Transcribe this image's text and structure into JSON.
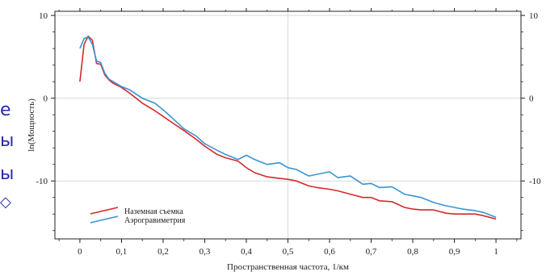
{
  "edge_glyphs": [
    "е",
    "ы",
    "ы",
    "◇"
  ],
  "colors": {
    "ground": "#d42a2a",
    "aero": "#3a93d6",
    "axis": "#222222",
    "grid": "#d9d9d9",
    "side": "#2a2aa8"
  },
  "chart_data": {
    "type": "line",
    "xlabel": "Пространственная частота, 1/км",
    "ylabel": "ln(Мощность)",
    "xlim": [
      -0.06,
      1.06
    ],
    "ylim": [
      -17,
      10.5
    ],
    "xticks": [
      0,
      0.1,
      0.2,
      0.3,
      0.4,
      0.5,
      0.6,
      0.7,
      0.8,
      0.9,
      1
    ],
    "xtick_labels": [
      "0",
      "0,1",
      "0,2",
      "0,3",
      "0,4",
      "0,5",
      "0,6",
      "0,7",
      "0,8",
      "0,9",
      "1"
    ],
    "yticks": [
      -10,
      0,
      10
    ],
    "ytick_labels": [
      "-10",
      "0",
      "10"
    ],
    "grid": true,
    "legend_position": "bottom-left",
    "series": [
      {
        "name": "Наземная съемка",
        "color": "#d42a2a",
        "x": [
          0,
          0.01,
          0.02,
          0.03,
          0.04,
          0.05,
          0.06,
          0.07,
          0.08,
          0.1,
          0.12,
          0.15,
          0.18,
          0.2,
          0.22,
          0.25,
          0.28,
          0.3,
          0.33,
          0.35,
          0.38,
          0.4,
          0.42,
          0.45,
          0.48,
          0.5,
          0.52,
          0.55,
          0.57,
          0.6,
          0.62,
          0.65,
          0.68,
          0.7,
          0.72,
          0.75,
          0.78,
          0.8,
          0.82,
          0.85,
          0.88,
          0.9,
          0.92,
          0.95,
          0.97,
          1.0
        ],
        "y": [
          2,
          6.5,
          7.5,
          7.0,
          4.2,
          4.1,
          2.8,
          2.2,
          1.8,
          1.3,
          0.6,
          -0.6,
          -1.5,
          -2.2,
          -2.9,
          -3.9,
          -5.0,
          -5.8,
          -6.8,
          -7.2,
          -7.6,
          -8.4,
          -9.0,
          -9.5,
          -9.7,
          -9.8,
          -10.0,
          -10.6,
          -10.8,
          -11.0,
          -11.2,
          -11.6,
          -12.0,
          -12.0,
          -12.4,
          -12.5,
          -13.2,
          -13.4,
          -13.5,
          -13.5,
          -13.9,
          -14.0,
          -14.0,
          -14.0,
          -14.2,
          -14.6
        ]
      },
      {
        "name": "Аэрогравиметрия",
        "color": "#3a93d6",
        "x": [
          0,
          0.01,
          0.02,
          0.03,
          0.04,
          0.05,
          0.06,
          0.07,
          0.08,
          0.1,
          0.12,
          0.15,
          0.18,
          0.2,
          0.22,
          0.25,
          0.28,
          0.3,
          0.33,
          0.35,
          0.38,
          0.4,
          0.42,
          0.45,
          0.48,
          0.5,
          0.52,
          0.55,
          0.57,
          0.6,
          0.62,
          0.65,
          0.68,
          0.7,
          0.72,
          0.75,
          0.78,
          0.8,
          0.82,
          0.85,
          0.88,
          0.9,
          0.92,
          0.95,
          0.97,
          1.0
        ],
        "y": [
          6,
          7.2,
          7.4,
          6.5,
          4.5,
          4.3,
          3.0,
          2.3,
          2.0,
          1.4,
          1.0,
          0,
          -0.6,
          -1.4,
          -2.3,
          -3.7,
          -4.6,
          -5.5,
          -6.3,
          -6.8,
          -7.4,
          -6.9,
          -7.4,
          -8.0,
          -7.8,
          -8.4,
          -8.6,
          -9.4,
          -9.2,
          -8.9,
          -9.6,
          -9.4,
          -10.4,
          -10.3,
          -10.8,
          -10.7,
          -11.6,
          -11.8,
          -12.0,
          -12.6,
          -13.0,
          -13.2,
          -13.4,
          -13.6,
          -13.8,
          -14.4
        ]
      }
    ]
  }
}
